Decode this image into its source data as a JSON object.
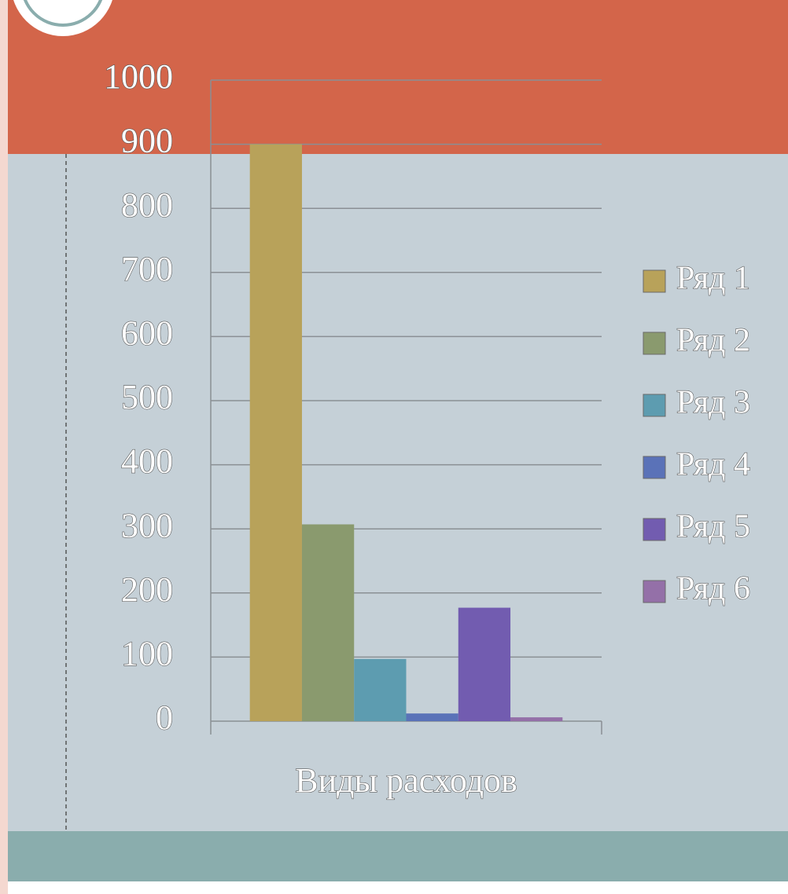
{
  "chart_data": {
    "type": "bar",
    "categories": [
      "Виды расходов"
    ],
    "series": [
      {
        "name": "Ряд 1",
        "color": "#b8a25a",
        "values": [
          900
        ]
      },
      {
        "name": "Ряд 2",
        "color": "#8a9a6e",
        "values": [
          307
        ]
      },
      {
        "name": "Ряд 3",
        "color": "#5d9cb0",
        "values": [
          97
        ]
      },
      {
        "name": "Ряд 4",
        "color": "#5a72b8",
        "values": [
          12
        ]
      },
      {
        "name": "Ряд 5",
        "color": "#725cb0",
        "values": [
          177
        ]
      },
      {
        "name": "Ряд 6",
        "color": "#9470a8",
        "values": [
          6
        ]
      }
    ],
    "ylim": [
      0,
      1000
    ],
    "yticks": [
      0,
      100,
      200,
      300,
      400,
      500,
      600,
      700,
      800,
      900,
      1000
    ],
    "grid": true,
    "legend": "right"
  }
}
